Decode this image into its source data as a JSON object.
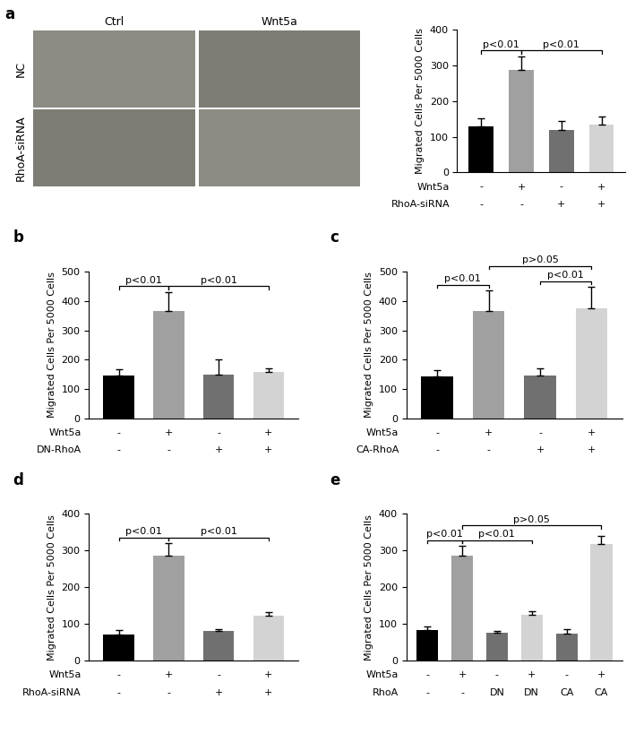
{
  "chart_data": [
    {
      "type": "bar",
      "title": "a",
      "y_label": "Migrated Cells Per 5000 Cells",
      "images": {
        "columns": [
          "Ctrl",
          "Wnt5a"
        ],
        "rows": [
          "NC",
          "RhoA-siRNA"
        ]
      },
      "values": [
        130,
        287,
        118,
        135
      ],
      "errors": [
        22,
        38,
        25,
        22
      ],
      "colors": [
        "#000000",
        "#a0a0a0",
        "#707070",
        "#d3d3d3"
      ],
      "conditions": [
        {
          "name": "Wnt5a",
          "values": [
            "-",
            "+",
            "-",
            "+"
          ]
        },
        {
          "name": "RhoA-siRNA",
          "values": [
            "-",
            "-",
            "+",
            "+"
          ]
        }
      ],
      "comparisons": [
        {
          "from": 0,
          "to": 1,
          "label": "p<0.01"
        },
        {
          "from": 1,
          "to": 3,
          "label": "p<0.01"
        }
      ],
      "ylim": [
        0,
        400
      ],
      "yticks": [
        0,
        100,
        200,
        300,
        400
      ],
      "tick_labels": "y"
    },
    {
      "type": "bar",
      "title": "b",
      "y_label": "Migrated Cells Per 5000 Cells",
      "values": [
        147,
        365,
        150,
        158
      ],
      "errors": [
        20,
        65,
        52,
        12
      ],
      "colors": [
        "#000000",
        "#a0a0a0",
        "#707070",
        "#d3d3d3"
      ],
      "conditions": [
        {
          "name": "Wnt5a",
          "values": [
            "-",
            "+",
            "-",
            "+"
          ]
        },
        {
          "name": "DN-RhoA",
          "values": [
            "-",
            "-",
            "+",
            "+"
          ]
        }
      ],
      "comparisons": [
        {
          "from": 0,
          "to": 1,
          "label": "p<0.01"
        },
        {
          "from": 1,
          "to": 3,
          "label": "p<0.01"
        }
      ],
      "ylim": [
        0,
        500
      ],
      "yticks": [
        0,
        100,
        200,
        300,
        400,
        500
      ],
      "tick_labels": "y"
    },
    {
      "type": "bar",
      "title": "c",
      "y_label": "Migrated Cells Per 5000 Cells",
      "values": [
        143,
        367,
        145,
        375
      ],
      "errors": [
        20,
        68,
        25,
        73
      ],
      "colors": [
        "#000000",
        "#a0a0a0",
        "#707070",
        "#d3d3d3"
      ],
      "conditions": [
        {
          "name": "Wnt5a",
          "values": [
            "-",
            "+",
            "-",
            "+"
          ]
        },
        {
          "name": "CA-RhoA",
          "values": [
            "-",
            "-",
            "+",
            "+"
          ]
        }
      ],
      "comparisons": [
        {
          "from": 0,
          "to": 1,
          "label": "p<0.01"
        },
        {
          "from": 1,
          "to": 3,
          "label": "p>0.05"
        },
        {
          "from": 2,
          "to": 3,
          "label": "p<0.01"
        }
      ],
      "ylim": [
        0,
        500
      ],
      "yticks": [
        0,
        100,
        200,
        300,
        400,
        500
      ],
      "tick_labels": "y"
    },
    {
      "type": "bar",
      "title": "d",
      "y_label": "Migrated Cells Per 5000 Cells",
      "values": [
        72,
        287,
        80,
        123
      ],
      "errors": [
        12,
        32,
        5,
        10
      ],
      "colors": [
        "#000000",
        "#a0a0a0",
        "#707070",
        "#d3d3d3"
      ],
      "conditions": [
        {
          "name": "Wnt5a",
          "values": [
            "-",
            "+",
            "-",
            "+"
          ]
        },
        {
          "name": "RhoA-siRNA",
          "values": [
            "-",
            "-",
            "+",
            "+"
          ]
        }
      ],
      "comparisons": [
        {
          "from": 0,
          "to": 1,
          "label": "p<0.01"
        },
        {
          "from": 1,
          "to": 3,
          "label": "p<0.01"
        }
      ],
      "ylim": [
        0,
        400
      ],
      "yticks": [
        0,
        100,
        200,
        300,
        400
      ],
      "tick_labels": "y"
    },
    {
      "type": "bar",
      "title": "e",
      "y_label": "Migrated Cells Per 5000 Cells",
      "values": [
        83,
        287,
        75,
        125,
        73,
        317
      ],
      "errors": [
        10,
        25,
        5,
        10,
        12,
        22
      ],
      "colors": [
        "#000000",
        "#a0a0a0",
        "#707070",
        "#d3d3d3",
        "#707070",
        "#d3d3d3"
      ],
      "conditions": [
        {
          "name": "Wnt5a",
          "values": [
            "-",
            "+",
            "-",
            "+",
            "-",
            "+"
          ]
        },
        {
          "name": "RhoA",
          "values": [
            "-",
            "-",
            "DN",
            "DN",
            "CA",
            "CA"
          ]
        }
      ],
      "comparisons": [
        {
          "from": 0,
          "to": 1,
          "label": "p<0.01"
        },
        {
          "from": 1,
          "to": 3,
          "label": "p<0.01"
        },
        {
          "from": 1,
          "to": 5,
          "label": "p>0.05"
        }
      ],
      "ylim": [
        0,
        400
      ],
      "yticks": [
        0,
        100,
        200,
        300,
        400
      ],
      "tick_labels": "y"
    }
  ]
}
